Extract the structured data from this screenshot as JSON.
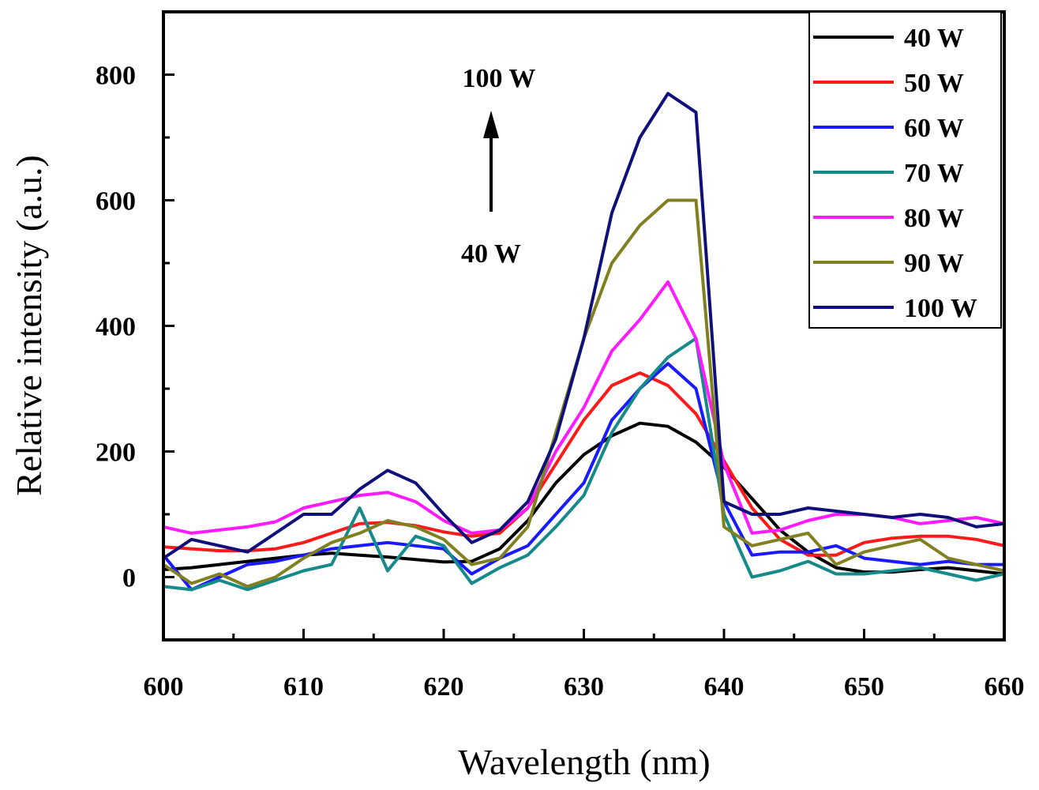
{
  "chart_data": {
    "type": "line",
    "title": "",
    "xlabel": "Wavelength (nm)",
    "ylabel": "Relative intensity (a.u.)",
    "xlim": [
      600,
      660
    ],
    "ylim": [
      -100,
      900
    ],
    "xticks": [
      600,
      610,
      620,
      630,
      640,
      650,
      660
    ],
    "yticks": [
      0,
      200,
      400,
      600,
      800
    ],
    "grid": false,
    "legend_position": "top-right",
    "annotations": {
      "top": "100 W",
      "bottom": "40 W",
      "arrow": "up"
    },
    "x": [
      600,
      602,
      604,
      606,
      608,
      610,
      612,
      614,
      616,
      618,
      620,
      622,
      624,
      626,
      628,
      630,
      632,
      634,
      636,
      638,
      640,
      642,
      644,
      646,
      648,
      650,
      652,
      654,
      656,
      658,
      660
    ],
    "series": [
      {
        "name": "40 W",
        "color": "#000000",
        "values": [
          12,
          15,
          20,
          25,
          30,
          35,
          38,
          35,
          32,
          28,
          24,
          25,
          45,
          90,
          150,
          195,
          225,
          245,
          240,
          215,
          175,
          125,
          75,
          40,
          15,
          8,
          8,
          12,
          15,
          10,
          5
        ]
      },
      {
        "name": "50 W",
        "color": "#ff1a1a",
        "values": [
          48,
          45,
          42,
          42,
          45,
          55,
          70,
          85,
          87,
          82,
          72,
          65,
          70,
          110,
          180,
          250,
          305,
          325,
          305,
          260,
          185,
          110,
          60,
          35,
          35,
          55,
          62,
          65,
          65,
          60,
          50
        ]
      },
      {
        "name": "60 W",
        "color": "#1a1aff",
        "values": [
          35,
          -20,
          0,
          20,
          25,
          35,
          45,
          50,
          55,
          50,
          45,
          5,
          30,
          50,
          100,
          150,
          250,
          300,
          340,
          300,
          120,
          35,
          40,
          40,
          50,
          30,
          25,
          20,
          25,
          20,
          20
        ]
      },
      {
        "name": "70 W",
        "color": "#168a8a",
        "values": [
          -15,
          -20,
          -5,
          -20,
          -5,
          10,
          20,
          110,
          10,
          65,
          50,
          -10,
          15,
          35,
          80,
          130,
          230,
          300,
          350,
          380,
          100,
          0,
          10,
          25,
          5,
          5,
          10,
          15,
          5,
          -5,
          5
        ]
      },
      {
        "name": "80 W",
        "color": "#ff1aff",
        "values": [
          80,
          70,
          75,
          80,
          88,
          110,
          120,
          130,
          135,
          120,
          90,
          70,
          75,
          110,
          200,
          270,
          360,
          410,
          470,
          380,
          180,
          70,
          75,
          90,
          100,
          100,
          95,
          85,
          90,
          95,
          85
        ]
      },
      {
        "name": "90 W",
        "color": "#808020",
        "values": [
          20,
          -10,
          5,
          -15,
          0,
          30,
          55,
          70,
          90,
          80,
          60,
          20,
          30,
          80,
          230,
          380,
          500,
          560,
          600,
          600,
          80,
          50,
          60,
          70,
          20,
          40,
          50,
          60,
          30,
          20,
          10
        ]
      },
      {
        "name": "100 W",
        "color": "#10107a",
        "values": [
          30,
          60,
          50,
          40,
          70,
          100,
          100,
          140,
          170,
          150,
          100,
          55,
          75,
          120,
          220,
          380,
          580,
          700,
          770,
          740,
          120,
          100,
          100,
          110,
          105,
          100,
          95,
          100,
          95,
          80,
          85
        ]
      }
    ]
  }
}
